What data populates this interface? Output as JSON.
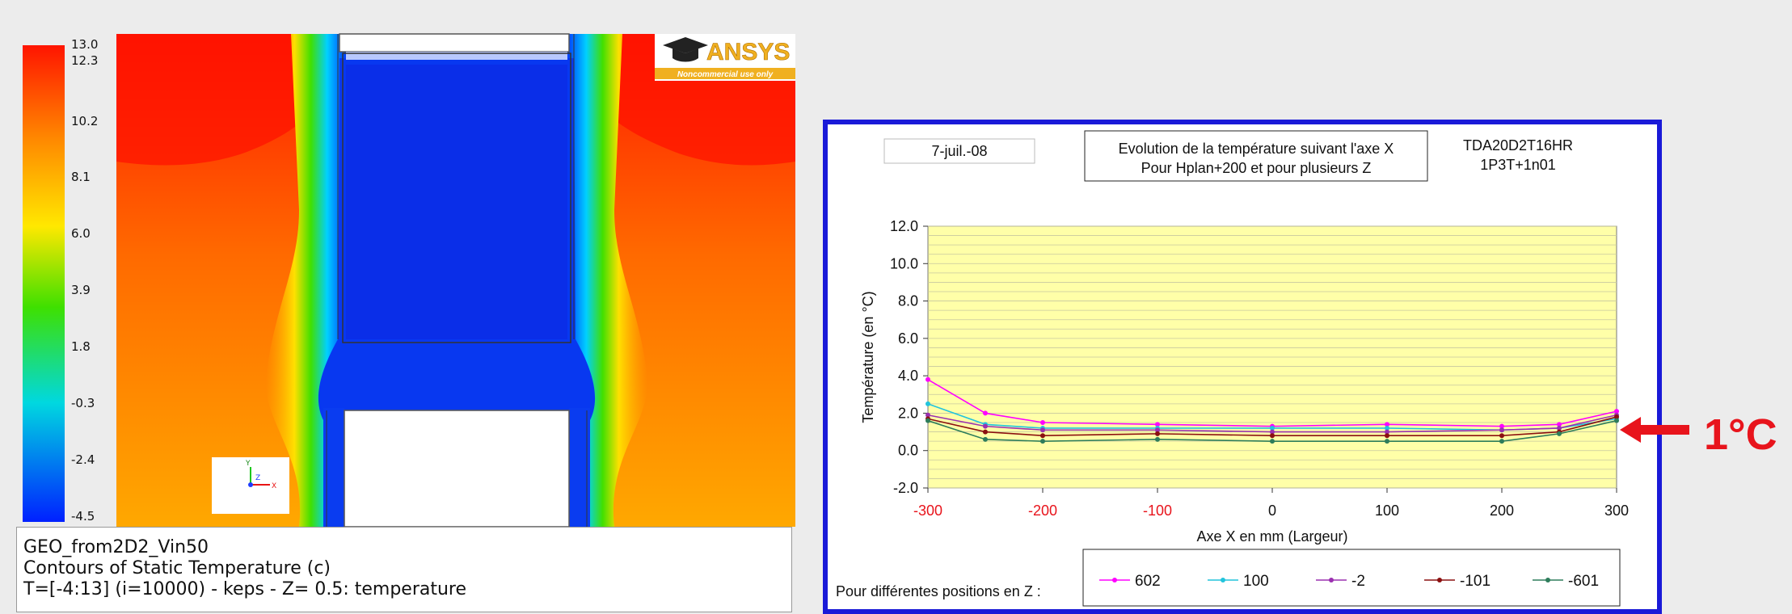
{
  "contour": {
    "logo": "ANSYS",
    "logo_sub": "Noncommercial use only",
    "axis_triad": {
      "y": "Y",
      "z": "Z",
      "x": "X"
    },
    "colorbar": {
      "labels": [
        "13.0",
        "12.3",
        "10.2",
        "8.1",
        "6.0",
        "3.9",
        "1.8",
        "-0.3",
        "-2.4",
        "-4.5"
      ],
      "colors": {
        "hot": "#ff1400",
        "warm": "#ff8a00",
        "yellow": "#ffe800",
        "green": "#3ee000",
        "cyan": "#00d8e0",
        "blue": "#0020ff"
      }
    },
    "caption": {
      "line1": "GEO_from2D2_Vin50",
      "line2": "Contours of Static Temperature (c)",
      "line3": "T=[-4:13] (i=10000) - keps - Z= 0.5: temperature"
    }
  },
  "chart_header": {
    "date": "7-juil.-08",
    "title_line1": "Evolution de la température suivant l'axe X",
    "title_line2": "Pour Hplan+200 et pour plusieurs Z",
    "code_line1": "TDA20D2T16HR",
    "code_line2": "1P3T+1n01",
    "legend_prefix": "Pour différentes positions en Z :"
  },
  "chart_data": {
    "type": "line",
    "xlabel": "Axe X en mm (Largeur)",
    "ylabel": "Température (en °C)",
    "xlim": [
      -300,
      300
    ],
    "ylim": [
      -2,
      12
    ],
    "xticks": [
      -300,
      -200,
      -100,
      0,
      100,
      200,
      300
    ],
    "yticks": [
      -2,
      0,
      2,
      4,
      6,
      8,
      10,
      12
    ],
    "ytick_labels": [
      "-2.0",
      "0.0",
      "2.0",
      "4.0",
      "6.0",
      "8.0",
      "10.0",
      "12.0"
    ],
    "negative_tick_color": "#e8141c",
    "plot_bg": "#ffffa8",
    "x": [
      -300,
      -250,
      -200,
      -100,
      0,
      100,
      200,
      250,
      300
    ],
    "series": [
      {
        "name": "602",
        "color": "#ff00ff",
        "values": [
          3.8,
          2.0,
          1.5,
          1.4,
          1.3,
          1.4,
          1.3,
          1.4,
          2.1
        ]
      },
      {
        "name": "100",
        "color": "#22c4dc",
        "values": [
          2.5,
          1.4,
          1.2,
          1.2,
          1.2,
          1.2,
          1.1,
          1.2,
          1.7
        ]
      },
      {
        "name": "-2",
        "color": "#9b30b0",
        "values": [
          1.9,
          1.3,
          1.1,
          1.1,
          1.0,
          1.0,
          1.1,
          1.2,
          1.9
        ]
      },
      {
        "name": "-101",
        "color": "#8b1010",
        "values": [
          1.7,
          1.0,
          0.8,
          0.9,
          0.8,
          0.8,
          0.8,
          1.0,
          1.8
        ]
      },
      {
        "name": "-601",
        "color": "#2e7d5b",
        "values": [
          1.6,
          0.6,
          0.5,
          0.6,
          0.5,
          0.5,
          0.5,
          0.9,
          1.6
        ]
      }
    ]
  },
  "annotation": {
    "label": "1°C",
    "color": "#e8141c"
  }
}
